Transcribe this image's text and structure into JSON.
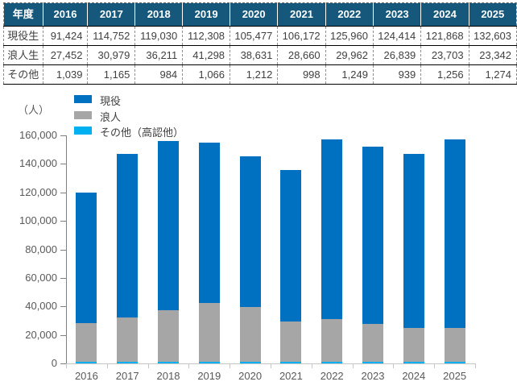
{
  "table": {
    "header_label": "年度",
    "years": [
      "2016",
      "2017",
      "2018",
      "2019",
      "2020",
      "2021",
      "2022",
      "2023",
      "2024",
      "2025"
    ],
    "rows": [
      {
        "label": "現役生",
        "values": [
          "91,424",
          "114,752",
          "119,030",
          "112,308",
          "105,477",
          "106,172",
          "125,960",
          "124,414",
          "121,868",
          "132,603"
        ]
      },
      {
        "label": "浪人生",
        "values": [
          "27,452",
          "30,979",
          "36,211",
          "41,298",
          "38,631",
          "28,660",
          "29,962",
          "26,839",
          "23,703",
          "23,342"
        ]
      },
      {
        "label": "その他",
        "values": [
          "1,039",
          "1,165",
          "984",
          "1,066",
          "1,212",
          "998",
          "1,249",
          "939",
          "1,256",
          "1,274"
        ]
      }
    ]
  },
  "chart_data": {
    "type": "bar",
    "stacked": true,
    "title": "",
    "categories": [
      "2016",
      "2017",
      "2018",
      "2019",
      "2020",
      "2021",
      "2022",
      "2023",
      "2024",
      "2025"
    ],
    "series": [
      {
        "name": "現役",
        "color": "#0070C0",
        "values": [
          91424,
          114752,
          119030,
          112308,
          105477,
          106172,
          125960,
          124414,
          121868,
          132603
        ]
      },
      {
        "name": "浪人",
        "color": "#A6A6A6",
        "values": [
          27452,
          30979,
          36211,
          41298,
          38631,
          28660,
          29962,
          26839,
          23703,
          23342
        ]
      },
      {
        "name": "その他（高認他）",
        "color": "#00B0F0",
        "values": [
          1039,
          1165,
          984,
          1066,
          1212,
          998,
          1249,
          939,
          1256,
          1274
        ]
      }
    ],
    "stack_order_bottom_to_top": [
      "その他（高認他）",
      "浪人",
      "現役"
    ],
    "ylabel": "（人）",
    "ylim": [
      0,
      160000
    ],
    "ytick_step": 20000,
    "ytick_labels": [
      "0",
      "20,000",
      "40,000",
      "60,000",
      "80,000",
      "100,000",
      "120,000",
      "140,000",
      "160,000"
    ],
    "grid": false,
    "legend_position": "top-left-inside"
  },
  "colors": {
    "table_header_bg": "#15587C",
    "table_header_text": "#FFFFFF",
    "table_text": "#404040",
    "bar_blue": "#0070C0",
    "bar_gray": "#A6A6A6",
    "bar_cyan": "#00B0F0",
    "axis_text": "#595959",
    "y_axis_line": "#808080",
    "x_axis_line": "#C6C6C6"
  }
}
